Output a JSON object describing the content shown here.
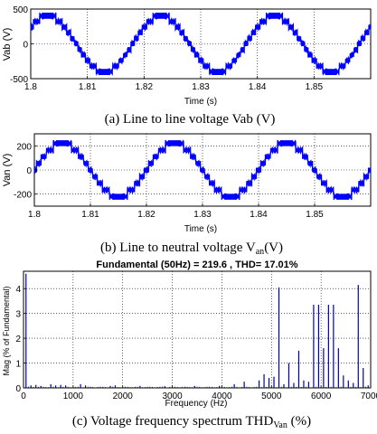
{
  "chart_data": [
    {
      "type": "line",
      "caption": "(a) Line to line voltage Vab (V)",
      "xlabel": "Time (s)",
      "ylabel": "Vab (V)",
      "xlim": [
        1.8,
        1.86
      ],
      "ylim": [
        -500,
        500
      ],
      "xticks": [
        1.8,
        1.81,
        1.82,
        1.83,
        1.84,
        1.85
      ],
      "yticks": [
        -500,
        0,
        500
      ],
      "frequency_hz": 50,
      "amplitude": 400,
      "color": "#0000ff",
      "grid": true,
      "series": [
        {
          "peaks": [
            [
              1.803,
              400
            ],
            [
              1.813,
              -400
            ],
            [
              1.823,
              400
            ],
            [
              1.833,
              -400
            ],
            [
              1.843,
              400
            ],
            [
              1.853,
              -400
            ]
          ]
        }
      ]
    },
    {
      "type": "line",
      "caption_main": "(b) Line to neutral voltage V",
      "caption_sub": "an",
      "caption_tail": "(V)",
      "xlabel": "Time (s)",
      "ylabel": "Van (V)",
      "xlim": [
        1.8,
        1.86
      ],
      "ylim": [
        -300,
        300
      ],
      "xticks": [
        1.8,
        1.81,
        1.82,
        1.83,
        1.84,
        1.85
      ],
      "yticks": [
        -200,
        0,
        200
      ],
      "frequency_hz": 50,
      "amplitude": 220,
      "color": "#0000ff",
      "grid": true,
      "series": [
        {
          "peaks": [
            [
              1.805,
              220
            ],
            [
              1.815,
              -220
            ],
            [
              1.825,
              220
            ],
            [
              1.835,
              -220
            ],
            [
              1.845,
              220
            ],
            [
              1.855,
              -220
            ]
          ]
        }
      ]
    },
    {
      "type": "bar",
      "title": "Fundamental (50Hz) = 219.6 , THD= 17.01%",
      "caption_main": "(c) Voltage frequency spectrum THD",
      "caption_sub": "Van",
      "caption_tail": " (%)",
      "xlabel": "Frequency (Hz)",
      "ylabel": "Mag (% of Fundamental)",
      "xlim": [
        0,
        7000
      ],
      "ylim": [
        0,
        4.7
      ],
      "xticks": [
        0,
        1000,
        2000,
        3000,
        4000,
        5000,
        6000,
        7000
      ],
      "yticks": [
        0,
        1,
        2,
        3,
        4
      ],
      "color": "#0000aa",
      "grid": true,
      "harmonics": [
        {
          "f": 50,
          "v": 4.6
        },
        {
          "f": 150,
          "v": 0.1
        },
        {
          "f": 250,
          "v": 0.12
        },
        {
          "f": 350,
          "v": 0.08
        },
        {
          "f": 550,
          "v": 0.15
        },
        {
          "f": 650,
          "v": 0.1
        },
        {
          "f": 750,
          "v": 0.12
        },
        {
          "f": 850,
          "v": 0.1
        },
        {
          "f": 1150,
          "v": 0.15
        },
        {
          "f": 1250,
          "v": 0.1
        },
        {
          "f": 1750,
          "v": 0.08
        },
        {
          "f": 1850,
          "v": 0.1
        },
        {
          "f": 2350,
          "v": 0.08
        },
        {
          "f": 2850,
          "v": 0.07
        },
        {
          "f": 3450,
          "v": 0.08
        },
        {
          "f": 3950,
          "v": 0.08
        },
        {
          "f": 4250,
          "v": 0.15
        },
        {
          "f": 4450,
          "v": 0.25
        },
        {
          "f": 4750,
          "v": 0.3
        },
        {
          "f": 4850,
          "v": 0.55
        },
        {
          "f": 4950,
          "v": 0.4
        },
        {
          "f": 5050,
          "v": 0.45
        },
        {
          "f": 5150,
          "v": 4.05
        },
        {
          "f": 5250,
          "v": 0.15
        },
        {
          "f": 5350,
          "v": 1.0
        },
        {
          "f": 5450,
          "v": 0.2
        },
        {
          "f": 5550,
          "v": 1.5
        },
        {
          "f": 5650,
          "v": 0.3
        },
        {
          "f": 5750,
          "v": 0.25
        },
        {
          "f": 5850,
          "v": 3.35
        },
        {
          "f": 5950,
          "v": 3.35
        },
        {
          "f": 6050,
          "v": 1.6
        },
        {
          "f": 6150,
          "v": 3.35
        },
        {
          "f": 6250,
          "v": 3.35
        },
        {
          "f": 6350,
          "v": 1.6
        },
        {
          "f": 6450,
          "v": 0.5
        },
        {
          "f": 6550,
          "v": 0.3
        },
        {
          "f": 6650,
          "v": 0.2
        },
        {
          "f": 6750,
          "v": 4.15
        },
        {
          "f": 6850,
          "v": 0.8
        },
        {
          "f": 6950,
          "v": 0.1
        }
      ]
    }
  ]
}
